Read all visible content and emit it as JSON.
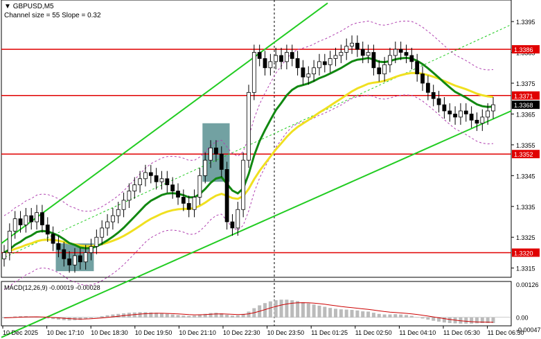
{
  "header": {
    "symbol_line": "GBPUSD,M5",
    "channel_line": "Channel size = 55 Slope = 0.32",
    "marker": "▼"
  },
  "macd": {
    "label": "MACD(12,26,9) -0.00019 -0.00028",
    "axis_labels": [
      "0.00126",
      "0.00",
      "-0.00047"
    ]
  },
  "colors": {
    "red_level": "#e00000",
    "channel_green": "#22cc22",
    "ma_green": "#118811",
    "ma_yellow": "#f0e020",
    "bollinger": "#b040b0",
    "zone": "#4f8a8b"
  },
  "chart_data": {
    "type": "candlestick",
    "price_axis": {
      "min": 1.3312,
      "max": 1.3402,
      "tick_labels": [
        "1.3395",
        "1.3385",
        "1.3375",
        "1.3365",
        "1.3355",
        "1.3345",
        "1.3335",
        "1.3325",
        "1.3315"
      ]
    },
    "time_labels": [
      "10 Dec 2025",
      "10 Dec 17:10",
      "10 Dec 18:30",
      "10 Dec 19:50",
      "10 Dec 21:10",
      "10 Dec 22:30",
      "10 Dec 23:50",
      "11 Dec 01:25",
      "11 Dec 02:50",
      "11 Dec 04:10",
      "11 Dec 05:30",
      "11 Dec 06:50"
    ],
    "levels": [
      {
        "price": 1.3386,
        "label": "1.3386",
        "style": "red"
      },
      {
        "price": 1.3371,
        "label": "1.3371",
        "style": "red"
      },
      {
        "price": 1.3368,
        "label": "1.3368",
        "style": "current"
      },
      {
        "price": 1.3352,
        "label": "1.3352",
        "style": "red"
      },
      {
        "price": 1.332,
        "label": "1.3320",
        "style": "red"
      }
    ],
    "closes": [
      1.332,
      1.3327,
      1.3331,
      1.3329,
      1.3332,
      1.333,
      1.3333,
      1.3329,
      1.3326,
      1.3323,
      1.3321,
      1.3318,
      1.3316,
      1.3319,
      1.3317,
      1.332,
      1.3322,
      1.3325,
      1.3328,
      1.333,
      1.3332,
      1.3334,
      1.3337,
      1.334,
      1.3342,
      1.3344,
      1.3346,
      1.3345,
      1.3343,
      1.3344,
      1.3342,
      1.334,
      1.3338,
      1.3336,
      1.3334,
      1.3338,
      1.3345,
      1.335,
      1.3354,
      1.3352,
      1.3347,
      1.333,
      1.3328,
      1.3334,
      1.335,
      1.3372,
      1.3385,
      1.3383,
      1.338,
      1.3382,
      1.3384,
      1.3382,
      1.3385,
      1.3383,
      1.338,
      1.3377,
      1.3378,
      1.338,
      1.3382,
      1.3381,
      1.3383,
      1.3384,
      1.3385,
      1.3387,
      1.3388,
      1.3386,
      1.3384,
      1.3385,
      1.338,
      1.3378,
      1.3381,
      1.3384,
      1.3386,
      1.3385,
      1.3384,
      1.3382,
      1.3378,
      1.3375,
      1.3372,
      1.337,
      1.3368,
      1.3366,
      1.3365,
      1.3364,
      1.3366,
      1.3365,
      1.3363,
      1.3362,
      1.3364,
      1.3366,
      1.3368
    ],
    "channel": {
      "size": 55,
      "slope": 0.32
    },
    "highlight_zones": [
      {
        "from_index": 10,
        "to_index": 16,
        "price_low": 1.3314,
        "price_high": 1.3323
      },
      {
        "from_index": 37,
        "to_index": 41,
        "price_low": 1.3343,
        "price_high": 1.3362
      }
    ],
    "macd_histogram": [
      -2e-05,
      1e-05,
      3e-05,
      4e-05,
      4e-05,
      3e-05,
      2e-05,
      0.0,
      -3e-05,
      -5e-05,
      -7e-05,
      -9e-05,
      -0.0001,
      -9e-05,
      -8e-05,
      -5e-05,
      -2e-05,
      1e-05,
      4e-05,
      7e-05,
      0.0001,
      0.00012,
      0.00014,
      0.00016,
      0.00017,
      0.00018,
      0.00018,
      0.00017,
      0.00016,
      0.00014,
      0.00012,
      0.0001,
      8e-05,
      6e-05,
      5e-05,
      6e-05,
      9e-05,
      0.00012,
      0.00015,
      0.00016,
      0.00014,
      9e-05,
      6e-05,
      7e-05,
      0.00012,
      0.0002,
      0.00032,
      0.00042,
      0.0005,
      0.00056,
      0.0006,
      0.00062,
      0.00062,
      0.0006,
      0.00057,
      0.00053,
      0.00049,
      0.00045,
      0.00041,
      0.00037,
      0.00033,
      0.0003,
      0.00028,
      0.00027,
      0.00026,
      0.00024,
      0.00021,
      0.0002,
      0.00016,
      0.00012,
      0.0001,
      0.0001,
      0.00011,
      0.0001,
      8e-05,
      5e-05,
      1e-05,
      -3e-05,
      -7e-05,
      -0.00011,
      -0.00014,
      -0.00017,
      -0.00019,
      -0.0002,
      -0.00021,
      -0.00021,
      -0.00021,
      -0.0002,
      -0.00019,
      -0.00019,
      -0.00019
    ]
  }
}
